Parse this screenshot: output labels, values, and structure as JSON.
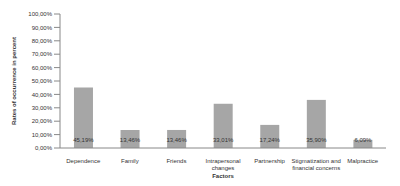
{
  "chart_data": {
    "type": "bar",
    "x_label": "Factors",
    "y_label": "Rates of occurrence in percent",
    "categories": [
      "Dependence",
      "Family",
      "Friends",
      "Intrapersonal changes",
      "Partnership",
      "Stigmatization and financial concerns",
      "Malpractice"
    ],
    "values": [
      45.19,
      13.46,
      13.46,
      33.01,
      17.24,
      35.9,
      6.09
    ],
    "value_labels": [
      "45,19%",
      "13,46%",
      "13,46%",
      "33,01%",
      "17,24%",
      "35,90%",
      "6,09%"
    ],
    "color": "#a6a6a6",
    "ylim": [
      0,
      100
    ],
    "yticks": [
      {
        "value": 0,
        "label": "0,00%"
      },
      {
        "value": 10,
        "label": "10,00%"
      },
      {
        "value": 20,
        "label": "20,00%"
      },
      {
        "value": 30,
        "label": "30,00%"
      },
      {
        "value": 40,
        "label": "40,00%"
      },
      {
        "value": 50,
        "label": "50,00%"
      },
      {
        "value": 60,
        "label": "60,00%"
      },
      {
        "value": 70,
        "label": "70,00%"
      },
      {
        "value": 80,
        "label": "80,00%"
      },
      {
        "value": 90,
        "label": "90,00%"
      },
      {
        "value": 100,
        "label": "100,00%"
      }
    ],
    "grid": false,
    "data_labels": true
  }
}
